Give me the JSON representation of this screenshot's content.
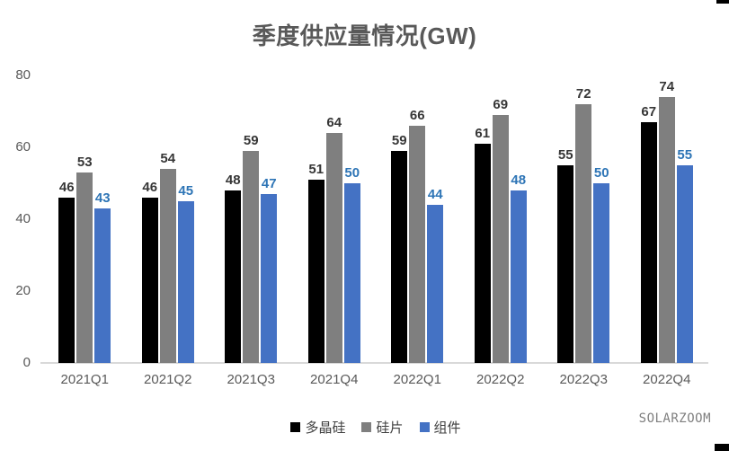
{
  "title": "季度供应量情况(GW)",
  "watermark": "SOLARZOOM",
  "colors": {
    "axis_text": "#595959",
    "title_text": "#595959",
    "baseline": "#d9d9d9",
    "legend_text": "#404040",
    "label_dark": "#363636",
    "label_blue": "#2e75b6"
  },
  "chart_data": {
    "type": "bar",
    "title": "季度供应量情况(GW)",
    "categories": [
      "2021Q1",
      "2021Q2",
      "2021Q3",
      "2021Q4",
      "2022Q1",
      "2022Q2",
      "2022Q3",
      "2022Q4"
    ],
    "series": [
      {
        "name": "多晶硅",
        "color": "#000000",
        "label_color": "#363636",
        "values": [
          46,
          46,
          48,
          51,
          59,
          61,
          55,
          67
        ]
      },
      {
        "name": "硅片",
        "color": "#7f7f7f",
        "label_color": "#363636",
        "values": [
          53,
          54,
          59,
          64,
          66,
          69,
          72,
          74
        ]
      },
      {
        "name": "组件",
        "color": "#4472c4",
        "label_color": "#2e75b6",
        "values": [
          43,
          45,
          47,
          50,
          44,
          48,
          50,
          55
        ]
      }
    ],
    "xlabel": "",
    "ylabel": "",
    "ylim": [
      0,
      80
    ],
    "y_ticks": [
      0,
      20,
      40,
      60,
      80
    ],
    "grid": false,
    "data_labels": true,
    "legend_position": "bottom"
  }
}
